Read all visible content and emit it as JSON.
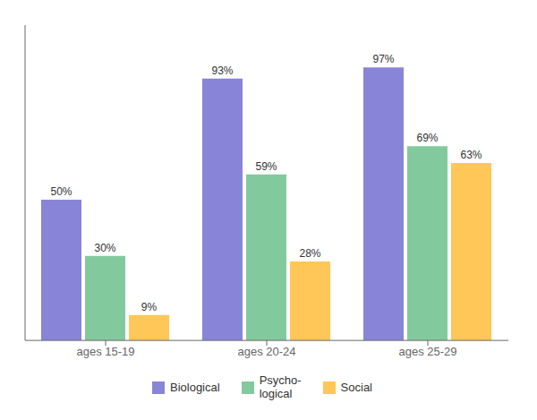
{
  "chart_data": {
    "type": "bar",
    "categories": [
      "ages 15-19",
      "ages 20-24",
      "ages 25-29"
    ],
    "series": [
      {
        "name": "Biological",
        "color": "#8884d8",
        "values": [
          50,
          93,
          97
        ],
        "value_labels": [
          "50%",
          "93%",
          "97%"
        ]
      },
      {
        "name": "Psycho-\nlogical",
        "color": "#82ca9d",
        "values": [
          30,
          59,
          69
        ],
        "value_labels": [
          "30%",
          "59%",
          "69%"
        ]
      },
      {
        "name": "Social",
        "color": "#ffc658",
        "values": [
          9,
          28,
          63
        ],
        "value_labels": [
          "9%",
          "28%",
          "63%"
        ]
      }
    ],
    "ylim": [
      0,
      112
    ],
    "data_labels": true,
    "tick_labels": "x",
    "grid": false
  }
}
